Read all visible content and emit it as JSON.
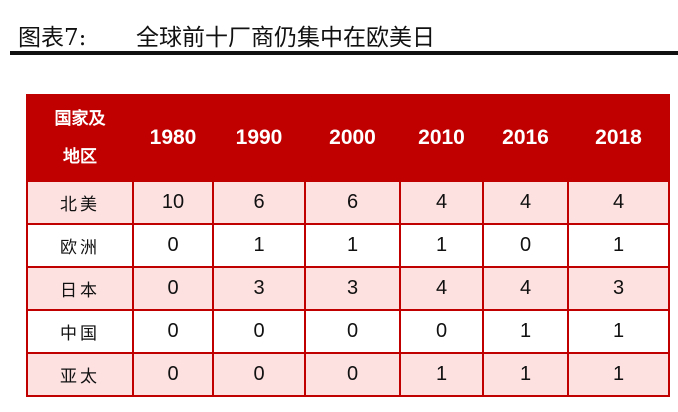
{
  "title": {
    "label": "图表7:",
    "text": "全球前十厂商仍集中在欧美日"
  },
  "table": {
    "header_region_line1": "国家及",
    "header_region_line2": "地区",
    "years": [
      "1980",
      "1990",
      "2000",
      "2010",
      "2016",
      "2018"
    ],
    "rows": [
      {
        "region": "北美",
        "values": [
          "10",
          "6",
          "6",
          "4",
          "4",
          "4"
        ]
      },
      {
        "region": "欧洲",
        "values": [
          "0",
          "1",
          "1",
          "1",
          "0",
          "1"
        ]
      },
      {
        "region": "日本",
        "values": [
          "0",
          "3",
          "3",
          "4",
          "4",
          "3"
        ]
      },
      {
        "region": "中国",
        "values": [
          "0",
          "0",
          "0",
          "0",
          "1",
          "1"
        ]
      },
      {
        "region": "亚太",
        "values": [
          "0",
          "0",
          "0",
          "1",
          "1",
          "1"
        ]
      }
    ]
  },
  "colors": {
    "header_bg": "#c00000",
    "stripe_bg": "#fde1e1",
    "border": "#c00000"
  }
}
